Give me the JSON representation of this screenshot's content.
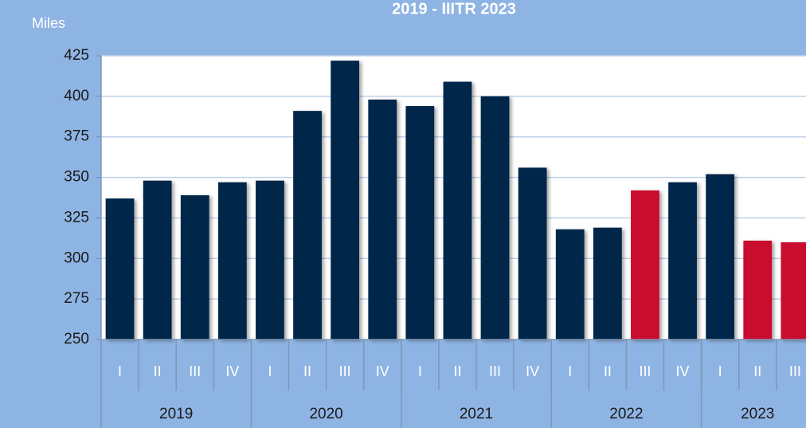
{
  "chart_data": {
    "type": "bar",
    "title": "2019 - IIITR 2023",
    "y_label": "Miles",
    "categories": [
      "I",
      "II",
      "III",
      "IV",
      "I",
      "II",
      "III",
      "IV",
      "I",
      "II",
      "III",
      "IV",
      "I",
      "II",
      "III",
      "IV",
      "I",
      "II",
      "III"
    ],
    "groups": [
      {
        "label": "2019",
        "span": 4
      },
      {
        "label": "2020",
        "span": 4
      },
      {
        "label": "2021",
        "span": 4
      },
      {
        "label": "2022",
        "span": 4
      },
      {
        "label": "2023",
        "span": 3
      }
    ],
    "values": [
      337,
      348,
      339,
      347,
      348,
      391,
      422,
      398,
      394,
      409,
      400,
      356,
      318,
      319,
      342,
      347,
      352,
      311,
      310
    ],
    "colors": [
      "#00284a",
      "#00284a",
      "#00284a",
      "#00284a",
      "#00284a",
      "#00284a",
      "#00284a",
      "#00284a",
      "#00284a",
      "#00284a",
      "#00284a",
      "#00284a",
      "#00284a",
      "#00284a",
      "#c8102e",
      "#00284a",
      "#00284a",
      "#c8102e",
      "#c8102e"
    ],
    "ylim": [
      250,
      425
    ],
    "yticks": [
      250,
      275,
      300,
      325,
      350,
      375,
      400,
      425
    ],
    "grid": true
  }
}
